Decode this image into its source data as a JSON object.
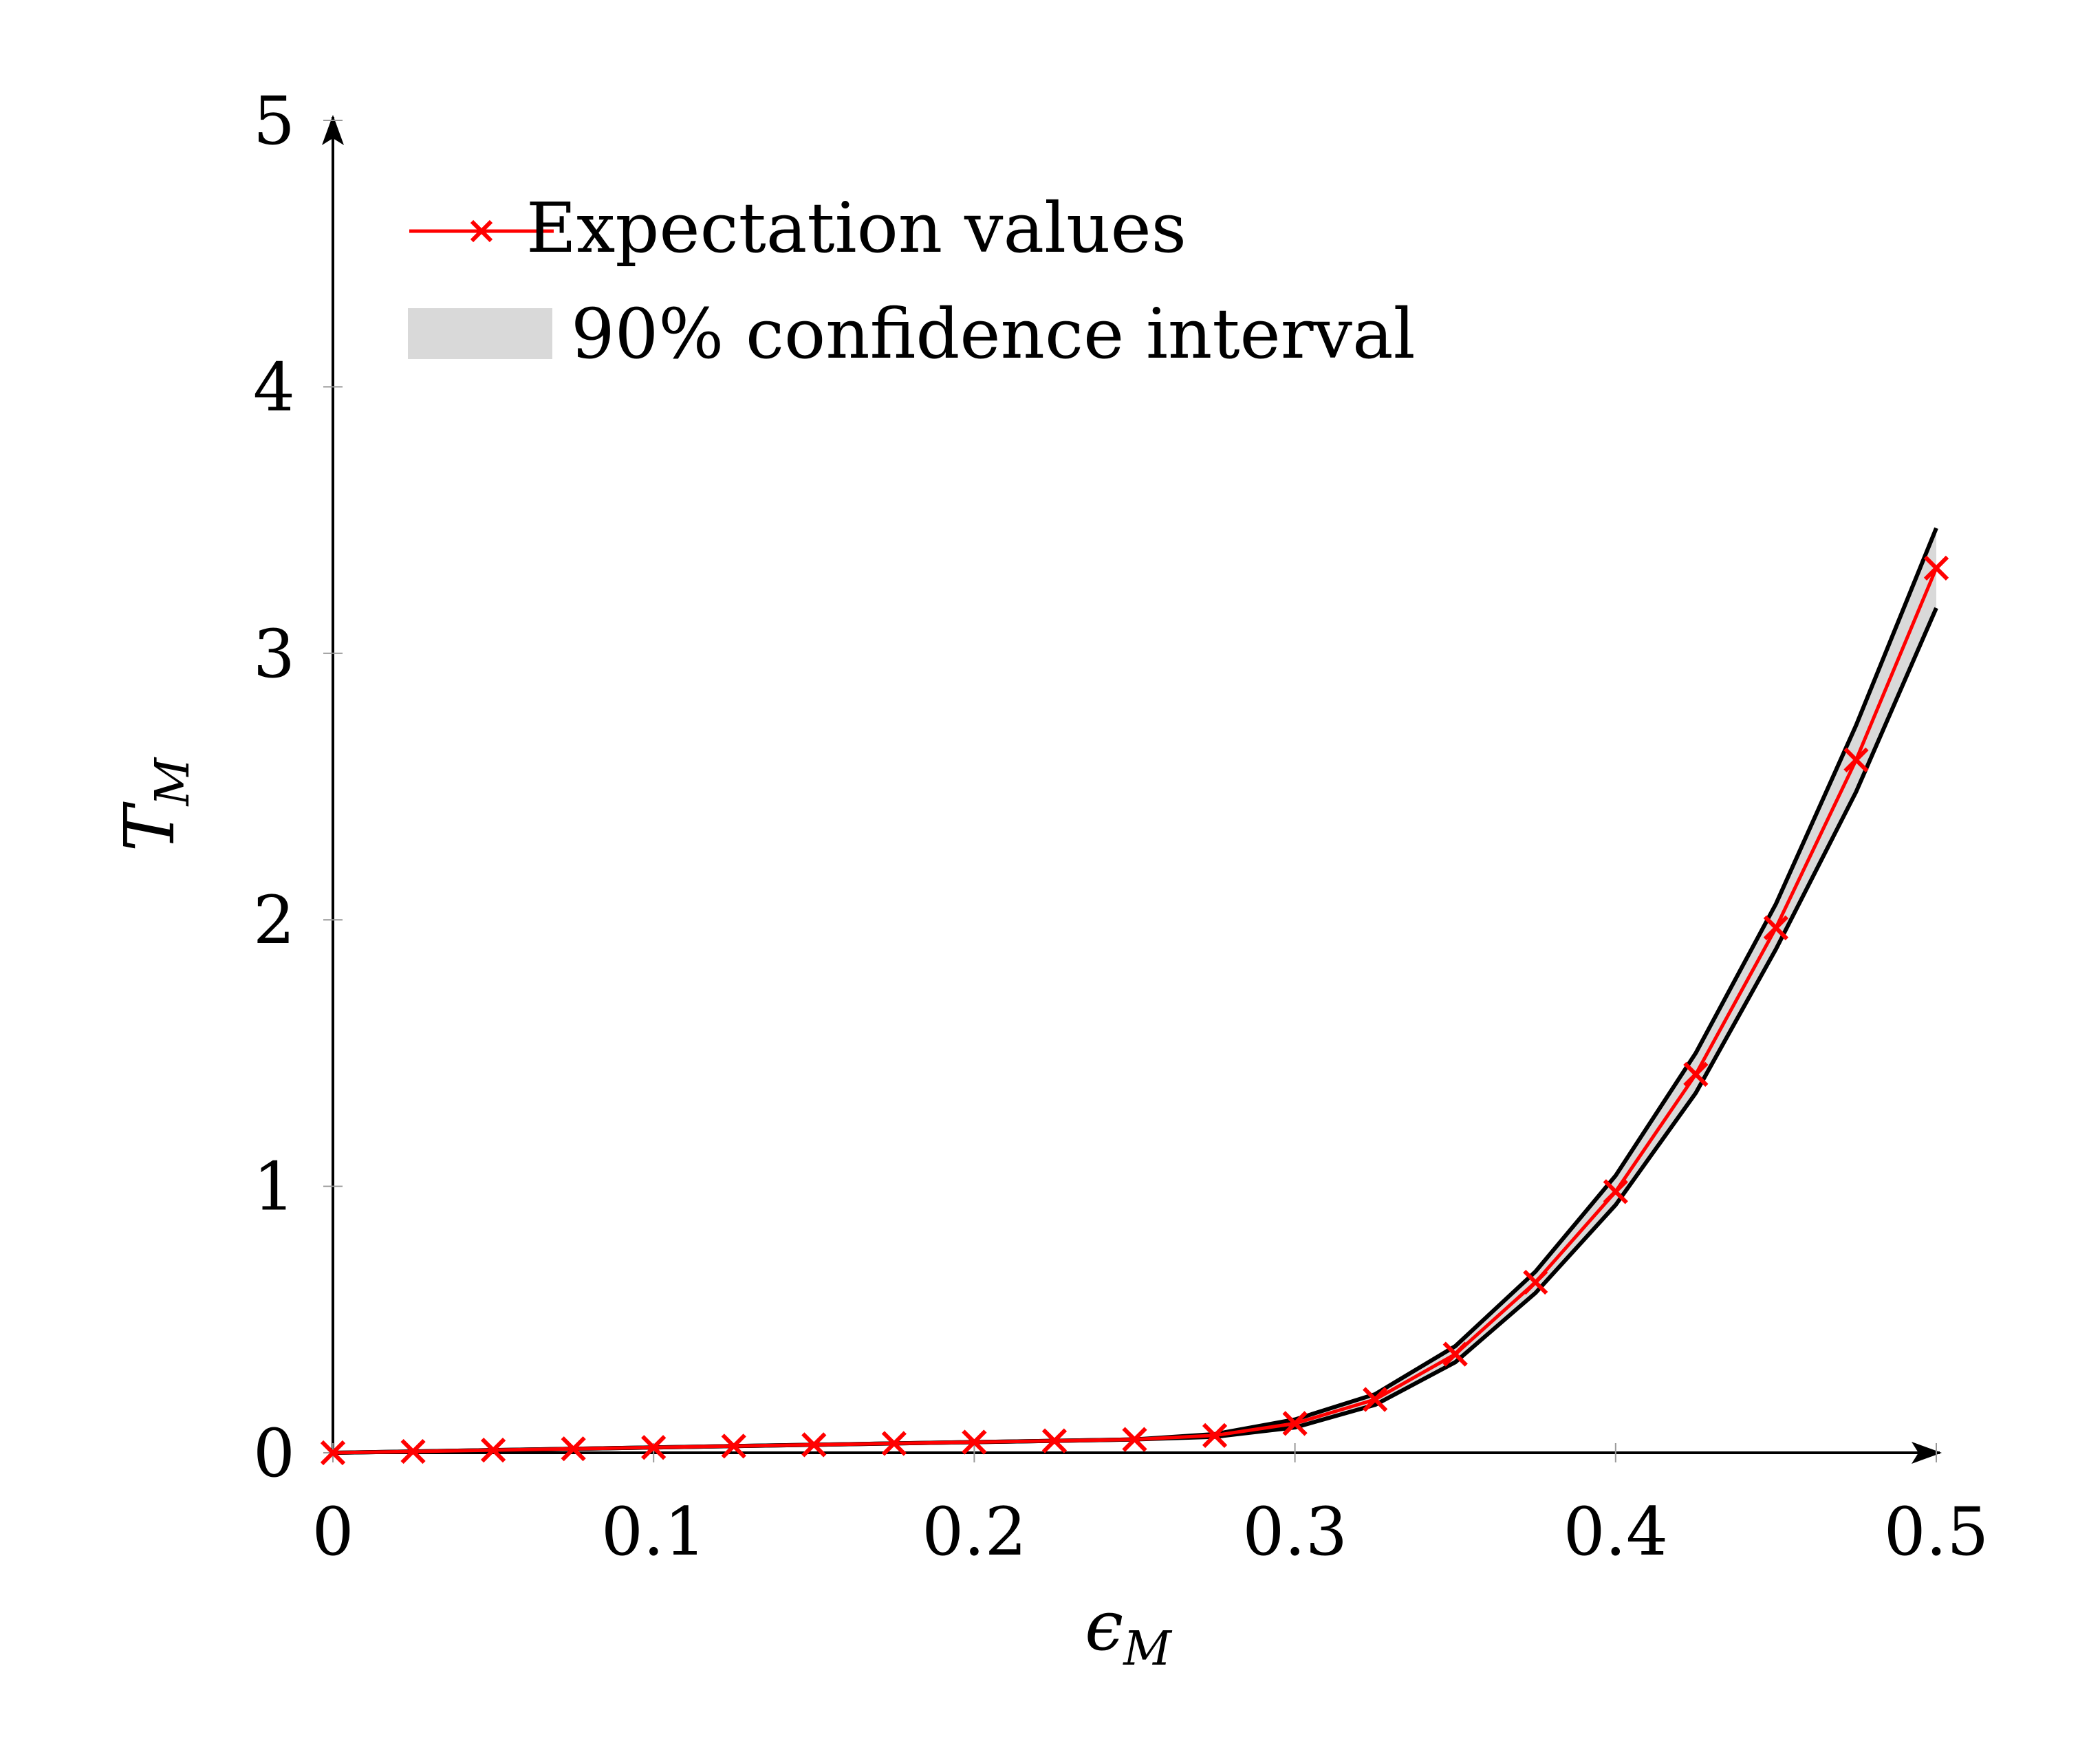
{
  "chart_data": {
    "type": "line",
    "xlabel": {
      "main": "ϵ",
      "sub": "M"
    },
    "ylabel": {
      "main": "T",
      "sub": "M"
    },
    "xlim": [
      0,
      0.5
    ],
    "ylim": [
      0,
      5
    ],
    "xticks": [
      "0",
      "0.1",
      "0.2",
      "0.3",
      "0.4",
      "0.5"
    ],
    "yticks": [
      "0",
      "1",
      "2",
      "3",
      "4",
      "5"
    ],
    "xtick_values": [
      0,
      0.1,
      0.2,
      0.3,
      0.4,
      0.5
    ],
    "ytick_values": [
      0,
      1,
      2,
      3,
      4,
      5
    ],
    "grid": false,
    "legend_position": "top-left",
    "x": [
      0,
      0.025,
      0.05,
      0.075,
      0.1,
      0.125,
      0.15,
      0.175,
      0.2,
      0.225,
      0.25,
      0.275,
      0.3,
      0.325,
      0.35,
      0.375,
      0.4,
      0.425,
      0.45,
      0.475,
      0.5
    ],
    "series": [
      {
        "name": "Expectation values",
        "color": "#ff0000",
        "marker": "x",
        "values": [
          0,
          0.005,
          0.01,
          0.015,
          0.02,
          0.025,
          0.03,
          0.035,
          0.04,
          0.045,
          0.05,
          0.065,
          0.11,
          0.2,
          0.37,
          0.64,
          0.98,
          1.42,
          1.97,
          2.6,
          3.32
        ]
      }
    ],
    "band": {
      "name": "90% confidence interval",
      "fill_color": "#d9d9d9",
      "edge_color": "#000000",
      "lower": [
        0,
        0.005,
        0.01,
        0.015,
        0.02,
        0.025,
        0.03,
        0.035,
        0.04,
        0.045,
        0.05,
        0.06,
        0.095,
        0.18,
        0.34,
        0.6,
        0.93,
        1.35,
        1.89,
        2.48,
        3.17
      ],
      "upper": [
        0,
        0.005,
        0.01,
        0.015,
        0.02,
        0.025,
        0.03,
        0.035,
        0.04,
        0.045,
        0.05,
        0.07,
        0.125,
        0.22,
        0.4,
        0.68,
        1.04,
        1.5,
        2.06,
        2.73,
        3.47
      ]
    }
  }
}
